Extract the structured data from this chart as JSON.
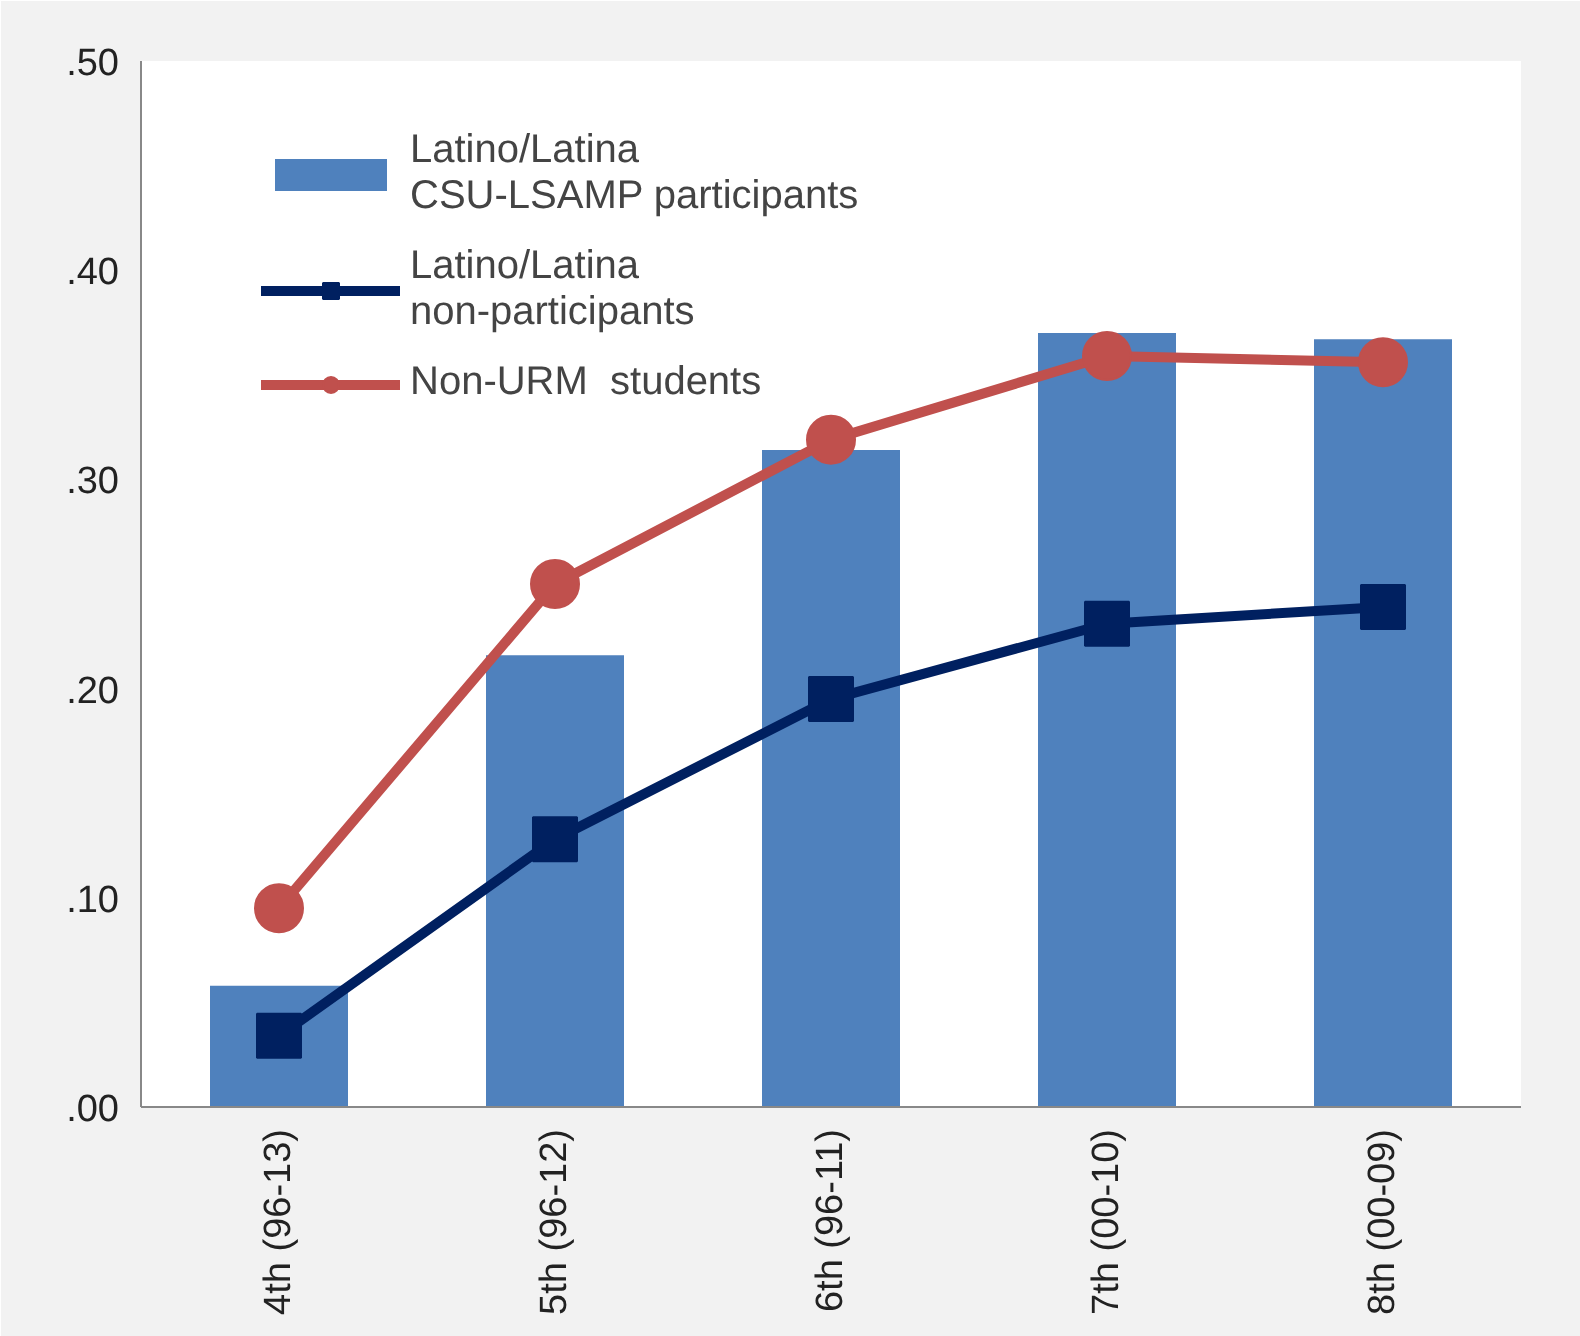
{
  "chart_data": {
    "type": "bar",
    "categories": [
      "4th (96-13)",
      "5th (96-12)",
      "6th (96-11)",
      "7th (00-10)",
      "8th (00-09)"
    ],
    "series": [
      {
        "name": "Latino/Latina\nCSU-LSAMP participants",
        "color": "#4f81bd",
        "values": [
          0.058,
          0.216,
          0.314,
          0.37,
          0.367
        ]
      },
      {
        "name": "Latino/Latina\nnon-participants",
        "type": "line",
        "marker": "square",
        "color": "#002060",
        "values": [
          0.034,
          0.128,
          0.195,
          0.231,
          0.239
        ]
      },
      {
        "name": "Non-URM  students",
        "type": "line",
        "marker": "circle",
        "color": "#c0504d",
        "values": [
          0.095,
          0.25,
          0.319,
          0.359,
          0.356
        ]
      }
    ],
    "ylim": [
      0,
      0.5
    ],
    "yticks": [
      {
        "value": 0,
        "label": ".00"
      },
      {
        "value": 0.1,
        "label": ".10"
      },
      {
        "value": 0.2,
        "label": ".20"
      },
      {
        "value": 0.3,
        "label": ".30"
      },
      {
        "value": 0.4,
        "label": ".40"
      },
      {
        "value": 0.5,
        "label": ".50"
      }
    ],
    "grid": false,
    "legend": "top left"
  }
}
